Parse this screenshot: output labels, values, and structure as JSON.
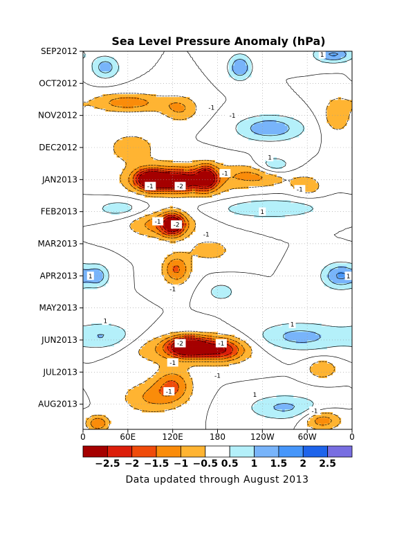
{
  "chart_data": {
    "type": "heatmap",
    "title": "Sea Level Pressure Anomaly (hPa)",
    "footer": "Data updated through August 2013",
    "x_ticks": [
      "0",
      "60E",
      "120E",
      "180",
      "120W",
      "60W",
      "0"
    ],
    "y_ticks": [
      "SEP2012",
      "OCT2012",
      "NOV2012",
      "DEC2012",
      "JAN2013",
      "FEB2013",
      "MAR2013",
      "APR2013",
      "MAY2013",
      "JUN2013",
      "JUL2013",
      "AUG2013"
    ],
    "legend": {
      "labels": [
        "-2.5",
        "-2",
        "-1.5",
        "-1",
        "-0.5",
        "0.5",
        "1",
        "1.5",
        "2",
        "2.5"
      ],
      "colors": [
        "#a50000",
        "#dc1e0a",
        "#f04b0a",
        "#fa8c0a",
        "#ffb432",
        "#ffffff",
        "#b4f0fa",
        "#78b4fa",
        "#4696fa",
        "#1e64eb",
        "#786ee1"
      ]
    },
    "features": [
      {
        "lon": 90,
        "t": 4.0,
        "dlon": 20,
        "dt": 0.3,
        "v": -3.0
      },
      {
        "lon": 125,
        "t": 4.05,
        "dlon": 25,
        "dt": 0.25,
        "v": -2.6
      },
      {
        "lon": 165,
        "t": 3.95,
        "dlon": 14,
        "dt": 0.35,
        "v": -2.6
      },
      {
        "lon": 130,
        "t": 4.0,
        "dlon": 70,
        "dt": 0.5,
        "v": -1.6
      },
      {
        "lon": 240,
        "t": 3.85,
        "dlon": 40,
        "dt": 0.35,
        "v": -1.2
      },
      {
        "lon": 120,
        "t": 5.4,
        "dlon": 15,
        "dt": 0.35,
        "v": -2.6
      },
      {
        "lon": 105,
        "t": 5.4,
        "dlon": 45,
        "dt": 0.4,
        "v": -1.3
      },
      {
        "lon": 140,
        "t": 9.2,
        "dlon": 25,
        "dt": 0.3,
        "v": -3.0
      },
      {
        "lon": 185,
        "t": 9.3,
        "dlon": 30,
        "dt": 0.35,
        "v": -1.8
      },
      {
        "lon": 140,
        "t": 9.3,
        "dlon": 80,
        "dt": 0.45,
        "v": -1.2
      },
      {
        "lon": 60,
        "t": 1.6,
        "dlon": 50,
        "dt": 0.3,
        "v": -1.3
      },
      {
        "lon": 130,
        "t": 1.8,
        "dlon": 25,
        "dt": 0.4,
        "v": -1.0
      },
      {
        "lon": 65,
        "t": 3.0,
        "dlon": 35,
        "dt": 0.5,
        "v": -0.8
      },
      {
        "lon": 125,
        "t": 6.8,
        "dlon": 18,
        "dt": 0.45,
        "v": -1.6
      },
      {
        "lon": 120,
        "t": 10.4,
        "dlon": 25,
        "dt": 0.5,
        "v": -1.4
      },
      {
        "lon": 90,
        "t": 10.8,
        "dlon": 40,
        "dt": 0.5,
        "v": -1.0
      },
      {
        "lon": 255,
        "t": 3.6,
        "dlon": 25,
        "dt": 0.3,
        "v": 1.3
      },
      {
        "lon": 210,
        "t": 0.5,
        "dlon": 16,
        "dt": 0.4,
        "v": 1.5
      },
      {
        "lon": 30,
        "t": 0.5,
        "dlon": 18,
        "dt": 0.35,
        "v": 1.3
      },
      {
        "lon": 335,
        "t": 0.1,
        "dlon": 25,
        "dt": 0.25,
        "v": 1.6
      },
      {
        "lon": 250,
        "t": 2.4,
        "dlon": 45,
        "dt": 0.4,
        "v": 1.4
      },
      {
        "lon": 250,
        "t": 4.9,
        "dlon": 70,
        "dt": 0.3,
        "v": 1.0
      },
      {
        "lon": 50,
        "t": 4.9,
        "dlon": 35,
        "dt": 0.3,
        "v": 0.8
      },
      {
        "lon": 290,
        "t": 8.9,
        "dlon": 60,
        "dt": 0.45,
        "v": 1.2
      },
      {
        "lon": 30,
        "t": 8.9,
        "dlon": 40,
        "dt": 0.45,
        "v": 1.0
      },
      {
        "lon": 345,
        "t": 7.0,
        "dlon": 25,
        "dt": 0.4,
        "v": 1.6
      },
      {
        "lon": 20,
        "t": 7.0,
        "dlon": 15,
        "dt": 0.35,
        "v": 1.2
      },
      {
        "lon": 270,
        "t": 11.1,
        "dlon": 50,
        "dt": 0.4,
        "v": 1.1
      },
      {
        "lon": 185,
        "t": 7.5,
        "dlon": 20,
        "dt": 0.3,
        "v": 0.8
      },
      {
        "lon": 320,
        "t": 11.5,
        "dlon": 25,
        "dt": 0.3,
        "v": -1.4
      },
      {
        "lon": 340,
        "t": 2.0,
        "dlon": 20,
        "dt": 0.6,
        "v": -0.9
      },
      {
        "lon": 320,
        "t": 9.9,
        "dlon": 20,
        "dt": 0.3,
        "v": -1.0
      },
      {
        "lon": 20,
        "t": 11.6,
        "dlon": 15,
        "dt": 0.25,
        "v": -1.5
      },
      {
        "lon": 300,
        "t": 4.2,
        "dlon": 20,
        "dt": 0.3,
        "v": -0.9
      },
      {
        "lon": 170,
        "t": 6.2,
        "dlon": 30,
        "dt": 0.35,
        "v": -0.8
      }
    ],
    "contour_labels": [
      {
        "lon": 172,
        "t": 1.75,
        "text": "-1"
      },
      {
        "lon": 200,
        "t": 2.0,
        "text": "-1"
      },
      {
        "lon": 250,
        "t": 3.3,
        "text": "1"
      },
      {
        "lon": 190,
        "t": 3.8,
        "text": "-1"
      },
      {
        "lon": 90,
        "t": 4.2,
        "text": "-1"
      },
      {
        "lon": 130,
        "t": 4.2,
        "text": "-2"
      },
      {
        "lon": 290,
        "t": 4.3,
        "text": "-1"
      },
      {
        "lon": 240,
        "t": 5.0,
        "text": "1"
      },
      {
        "lon": 100,
        "t": 5.3,
        "text": "-1"
      },
      {
        "lon": 125,
        "t": 5.4,
        "text": "-2"
      },
      {
        "lon": 165,
        "t": 5.7,
        "text": "-1"
      },
      {
        "lon": 10,
        "t": 7.0,
        "text": "1"
      },
      {
        "lon": 120,
        "t": 7.4,
        "text": "-1"
      },
      {
        "lon": 355,
        "t": 7.0,
        "text": "1"
      },
      {
        "lon": 30,
        "t": 8.4,
        "text": "1"
      },
      {
        "lon": 280,
        "t": 8.5,
        "text": "1"
      },
      {
        "lon": 130,
        "t": 9.1,
        "text": "-2"
      },
      {
        "lon": 185,
        "t": 9.1,
        "text": "-1"
      },
      {
        "lon": 120,
        "t": 9.7,
        "text": "-1"
      },
      {
        "lon": 180,
        "t": 10.1,
        "text": "-1"
      },
      {
        "lon": 115,
        "t": 10.6,
        "text": "-1"
      },
      {
        "lon": 230,
        "t": 10.7,
        "text": "1"
      },
      {
        "lon": 310,
        "t": 11.2,
        "text": "-1"
      },
      {
        "lon": 320,
        "t": 0.1,
        "text": "1"
      }
    ]
  }
}
